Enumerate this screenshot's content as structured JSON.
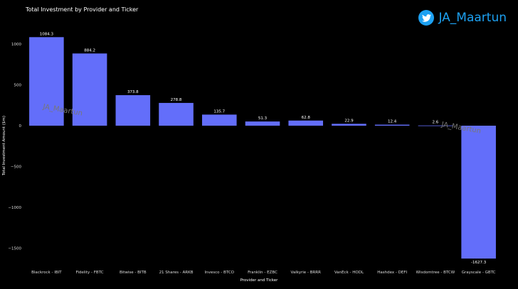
{
  "brand": {
    "handle": "JA_Maartun",
    "icon": "twitter-bird-icon",
    "color": "#1da1f2"
  },
  "watermark": "JA_Maartun",
  "chart_data": {
    "type": "bar",
    "title": "Total Investment by Provider and Ticker",
    "xlabel": "Provider and Ticker",
    "ylabel": "Total Investment Amount ($m)",
    "categories": [
      "Blackrock - IBIT",
      "Fidelity - FBTC",
      "Bitwise - BITB",
      "21 Shares - ARKB",
      "Invesco - BTCO",
      "Franklin - EZBC",
      "Valkyrie - BRRR",
      "VanEck - HODL",
      "Hashdex - DEFI",
      "Wisdomtree - BTCW",
      "Grayscale - GBTC"
    ],
    "values": [
      1084.3,
      884.2,
      373.8,
      278.8,
      135.7,
      51.3,
      62.8,
      22.9,
      12.4,
      2.6,
      -1627.3
    ],
    "value_labels": [
      "1084.3",
      "884.2",
      "373.8",
      "278.8",
      "135.7",
      "51.3",
      "62.8",
      "22.9",
      "12.4",
      "2.6",
      "-1627.3"
    ],
    "yticks": [
      1000,
      500,
      0,
      -500,
      -1000,
      -1500
    ],
    "ytick_labels": [
      "1000",
      "500",
      "0",
      "−500",
      "−1000",
      "−1500"
    ],
    "ylim": [
      -1700,
      1150
    ],
    "bar_color": "#636efa",
    "grid": false,
    "legend": "none"
  }
}
